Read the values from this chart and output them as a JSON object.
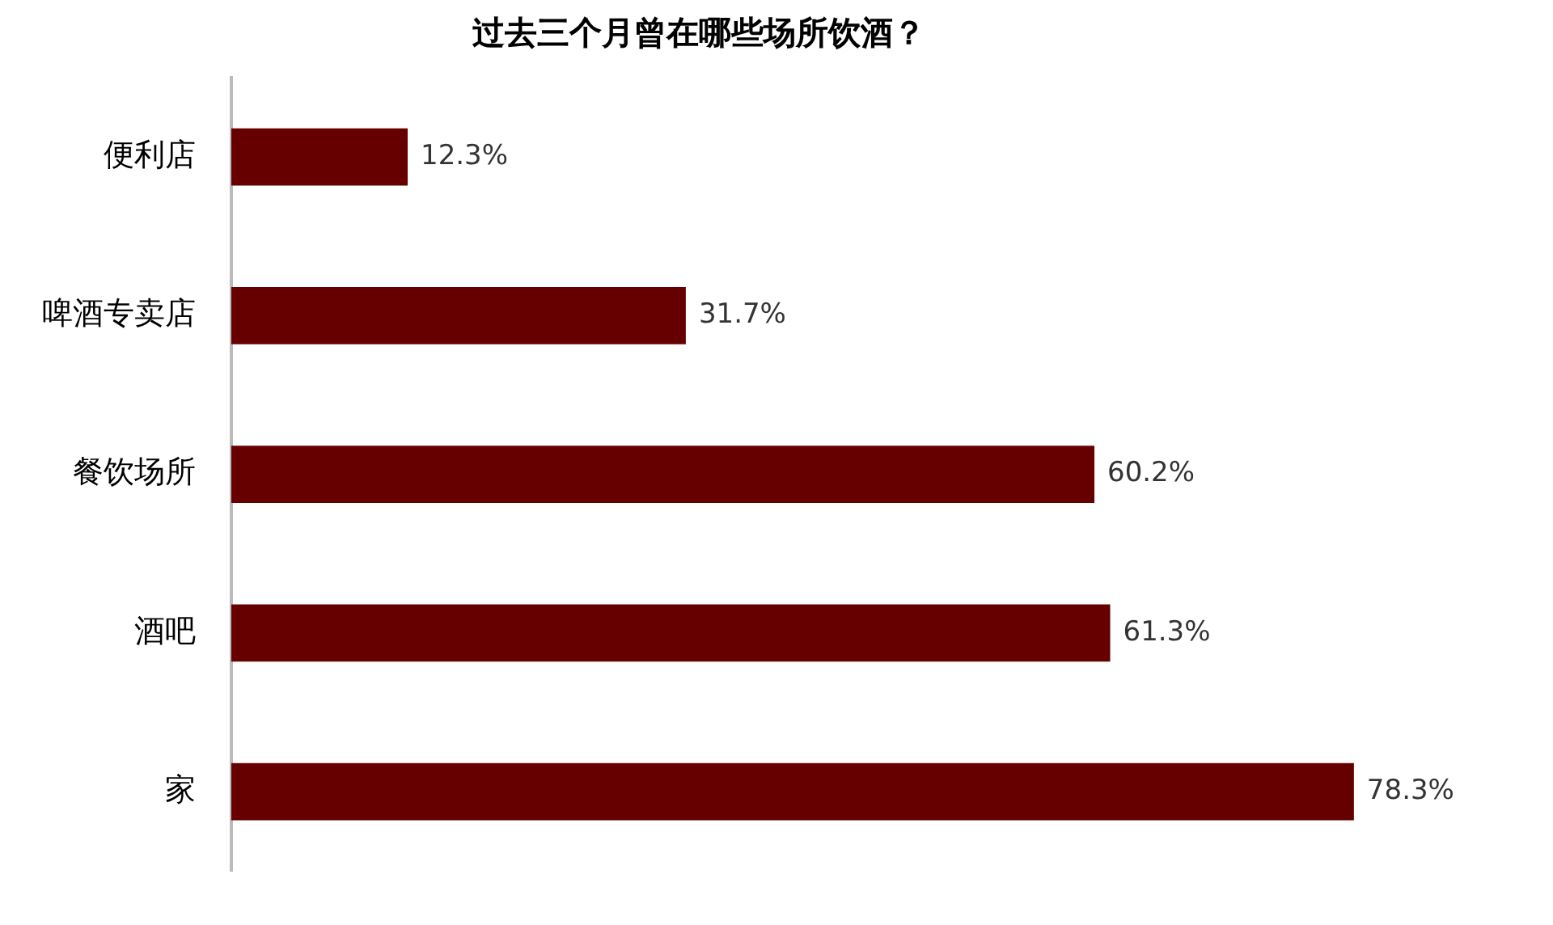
{
  "chart_data": {
    "type": "bar",
    "orientation": "horizontal",
    "title": "过去三个月曾在哪些场所饮酒？",
    "categories": [
      "便利店",
      "啤酒专卖店",
      "餐饮场所",
      "酒吧",
      "家"
    ],
    "values": [
      12.3,
      31.7,
      60.2,
      61.3,
      78.3
    ],
    "value_labels": [
      "12.3%",
      "31.7%",
      "60.2%",
      "61.3%",
      "78.3%"
    ],
    "color": "#660000",
    "legend": false
  }
}
